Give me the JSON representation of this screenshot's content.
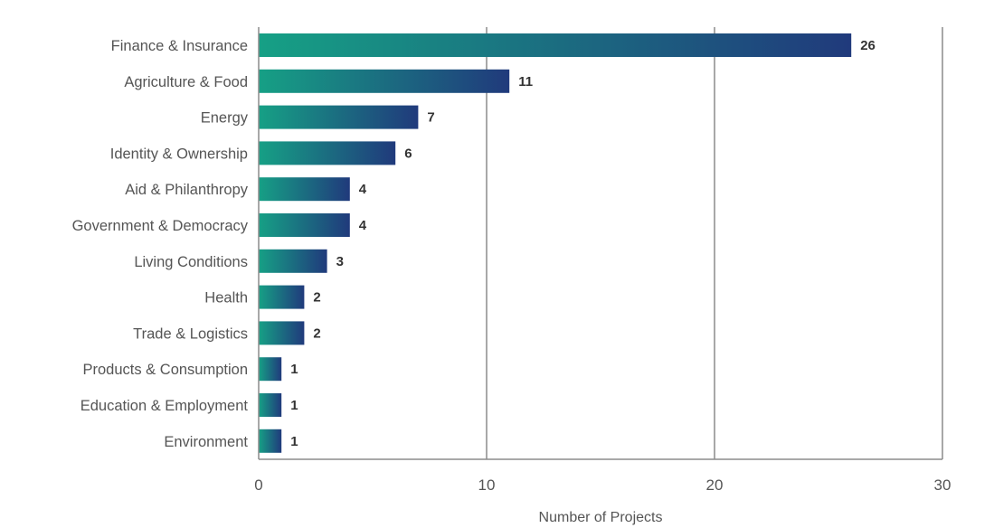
{
  "chart_data": {
    "type": "bar",
    "orientation": "horizontal",
    "categories": [
      "Finance & Insurance",
      "Agriculture & Food",
      "Energy",
      "Identity & Ownership",
      "Aid & Philanthropy",
      "Government & Democracy",
      "Living Conditions",
      "Health",
      "Trade & Logistics",
      "Products & Consumption",
      "Education & Employment",
      "Environment"
    ],
    "values": [
      26,
      11,
      7,
      6,
      4,
      4,
      3,
      2,
      2,
      1,
      1,
      1
    ],
    "value_labels": [
      "26",
      "11",
      "7",
      "6",
      "4",
      "4",
      "3",
      "2",
      "2",
      "1",
      "1",
      "1"
    ],
    "xlabel": "Number of Projects",
    "ylabel": "",
    "xlim": [
      0,
      30
    ],
    "xticks": [
      0,
      10,
      20,
      30
    ],
    "xtick_labels": [
      "0",
      "10",
      "20",
      "30"
    ],
    "grid": "vertical gridlines",
    "bar_gradient": [
      "#16a085",
      "#203a7c"
    ]
  }
}
